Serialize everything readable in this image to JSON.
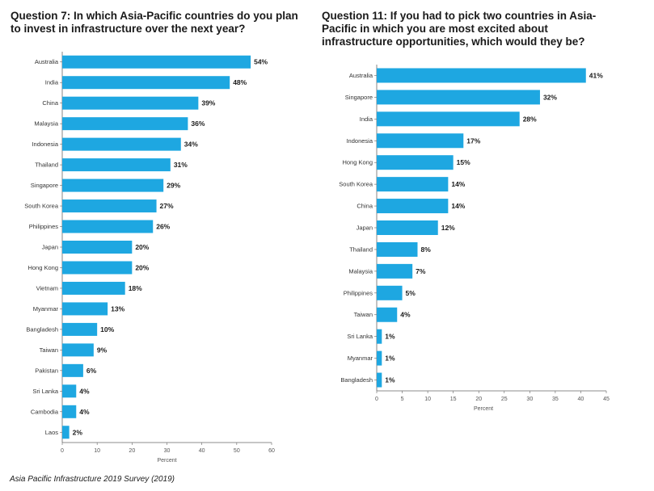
{
  "chart_data": [
    {
      "type": "bar",
      "orientation": "horizontal",
      "title": "Question 7: In which Asia-Pacific countries do you plan to invest in infrastructure over the next year?",
      "categories": [
        "Australia",
        "India",
        "China",
        "Malaysia",
        "Indonesia",
        "Thailand",
        "Singapore",
        "South Korea",
        "Philippines",
        "Japan",
        "Hong Kong",
        "Vietnam",
        "Myanmar",
        "Bangladesh",
        "Taiwan",
        "Pakistan",
        "Sri Lanka",
        "Cambodia",
        "Laos"
      ],
      "values": [
        54,
        48,
        39,
        36,
        34,
        31,
        29,
        27,
        26,
        20,
        20,
        18,
        13,
        10,
        9,
        6,
        4,
        4,
        2
      ],
      "value_labels": [
        "54%",
        "48%",
        "39%",
        "36%",
        "34%",
        "31%",
        "29%",
        "27%",
        "26%",
        "20%",
        "20%",
        "18%",
        "13%",
        "10%",
        "9%",
        "6%",
        "4%",
        "4%",
        "2%"
      ],
      "xlabel": "Percent",
      "xticks": [
        0,
        10,
        20,
        30,
        40,
        50,
        60
      ],
      "xlim": [
        0,
        60
      ],
      "color": "#1ea7e1",
      "grid": false
    },
    {
      "type": "bar",
      "orientation": "horizontal",
      "title": "Question 11: If you had to pick two countries in Asia-Pacific in which you are most excited about infrastructure opportunities, which would they be?",
      "categories": [
        "Australia",
        "Singapore",
        "India",
        "Indonesia",
        "Hong Kong",
        "South Korea",
        "China",
        "Japan",
        "Thailand",
        "Malaysia",
        "Philippines",
        "Taiwan",
        "Sri Lanka",
        "Myanmar",
        "Bangladesh"
      ],
      "values": [
        41,
        32,
        28,
        17,
        15,
        14,
        14,
        12,
        8,
        7,
        5,
        4,
        1,
        1,
        1
      ],
      "value_labels": [
        "41%",
        "32%",
        "28%",
        "17%",
        "15%",
        "14%",
        "14%",
        "12%",
        "8%",
        "7%",
        "5%",
        "4%",
        "1%",
        "1%",
        "1%"
      ],
      "xlabel": "Percent",
      "xticks": [
        0,
        5,
        10,
        15,
        20,
        25,
        30,
        35,
        40,
        45
      ],
      "xlim": [
        0,
        45
      ],
      "color": "#1ea7e1",
      "grid": false
    }
  ],
  "source": "Asia Pacific Infrastructure 2019 Survey (2019)"
}
